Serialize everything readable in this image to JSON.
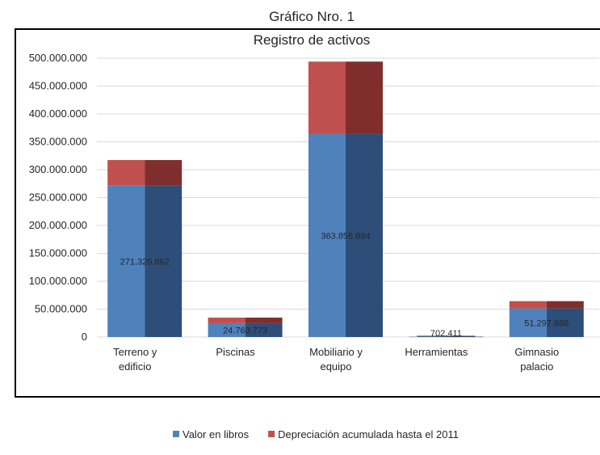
{
  "chart_data": {
    "type": "bar",
    "stacked": true,
    "title": "Gráfico Nro. 1",
    "subtitle": "Registro de activos",
    "categories": [
      [
        "Terreno y",
        "edificio"
      ],
      [
        "Piscinas"
      ],
      [
        "Mobiliario y",
        "equipo"
      ],
      [
        "Herramientas"
      ],
      [
        "Gimnasio",
        "palacio"
      ]
    ],
    "series": [
      {
        "name": "Valor en libros",
        "color": "#4F81BD",
        "shade": "#2E4E7A",
        "values": [
          271325862,
          24763773,
          363856894,
          702411,
          51297886
        ],
        "labels": [
          "271.325.862",
          "24.763.773",
          "363.856.894",
          "702.411",
          "51.297.886"
        ]
      },
      {
        "name": "Depreciación acumulada  hasta el 2011",
        "color": "#C0504D",
        "shade": "#7F2E2D",
        "values": [
          46000000,
          10000000,
          130000000,
          0,
          13000000
        ]
      }
    ],
    "ylim": [
      0,
      500000000
    ],
    "yticks": [
      "0",
      "50.000.000",
      "100.000.000",
      "150.000.000",
      "200.000.000",
      "250.000.000",
      "300.000.000",
      "350.000.000",
      "400.000.000",
      "450.000.000",
      "500.000.000"
    ],
    "grid": true,
    "legend": "bottom"
  }
}
